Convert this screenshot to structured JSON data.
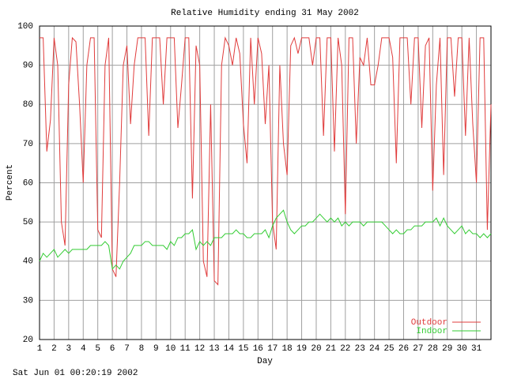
{
  "chart_data": {
    "type": "line",
    "title": "Relative Humidity ending 31 May 2002",
    "x_label": "Day",
    "y_label": "Percent",
    "footer": "Sat Jun 01 00:20:19 2002",
    "xlim": [
      1,
      32
    ],
    "ylim": [
      20,
      100
    ],
    "xticks": [
      1,
      2,
      3,
      4,
      5,
      6,
      7,
      8,
      9,
      10,
      11,
      12,
      13,
      14,
      15,
      16,
      17,
      18,
      19,
      20,
      21,
      22,
      23,
      24,
      25,
      26,
      27,
      28,
      29,
      30,
      31
    ],
    "yticks": [
      20,
      30,
      40,
      50,
      60,
      70,
      80,
      90,
      100
    ],
    "grid": true,
    "legend_position": "bottom-right",
    "x": [
      1,
      1.25,
      1.5,
      1.75,
      2,
      2.25,
      2.5,
      2.75,
      3,
      3.25,
      3.5,
      3.75,
      4,
      4.25,
      4.5,
      4.75,
      5,
      5.25,
      5.5,
      5.75,
      6,
      6.25,
      6.5,
      6.75,
      7,
      7.25,
      7.5,
      7.75,
      8,
      8.25,
      8.5,
      8.75,
      9,
      9.25,
      9.5,
      9.75,
      10,
      10.25,
      10.5,
      10.75,
      11,
      11.25,
      11.5,
      11.75,
      12,
      12.25,
      12.5,
      12.75,
      13,
      13.25,
      13.5,
      13.75,
      14,
      14.25,
      14.5,
      14.75,
      15,
      15.25,
      15.5,
      15.75,
      16,
      16.25,
      16.5,
      16.75,
      17,
      17.25,
      17.5,
      17.75,
      18,
      18.25,
      18.5,
      18.75,
      19,
      19.25,
      19.5,
      19.75,
      20,
      20.25,
      20.5,
      20.75,
      21,
      21.25,
      21.5,
      21.75,
      22,
      22.25,
      22.5,
      22.75,
      23,
      23.25,
      23.5,
      23.75,
      24,
      24.25,
      24.5,
      24.75,
      25,
      25.25,
      25.5,
      25.75,
      26,
      26.25,
      26.5,
      26.75,
      27,
      27.25,
      27.5,
      27.75,
      28,
      28.25,
      28.5,
      28.75,
      29,
      29.25,
      29.5,
      29.75,
      30,
      30.25,
      30.5,
      30.75,
      31,
      31.25,
      31.5,
      31.75,
      32
    ],
    "series": [
      {
        "name": "Outdoor",
        "color": "#e03c3c",
        "values": [
          97,
          97,
          68,
          76,
          97,
          90,
          50,
          44,
          85,
          97,
          96,
          80,
          60,
          90,
          97,
          97,
          48,
          46,
          90,
          97,
          38,
          36,
          60,
          90,
          95,
          75,
          90,
          97,
          97,
          97,
          72,
          97,
          97,
          97,
          80,
          97,
          97,
          97,
          74,
          85,
          97,
          97,
          56,
          95,
          90,
          40,
          36,
          80,
          35,
          34,
          90,
          97,
          95,
          90,
          97,
          93,
          75,
          65,
          97,
          80,
          97,
          93,
          75,
          90,
          50,
          43,
          90,
          70,
          62,
          95,
          97,
          93,
          97,
          97,
          97,
          90,
          97,
          97,
          72,
          97,
          97,
          68,
          97,
          90,
          52,
          97,
          97,
          70,
          92,
          90,
          97,
          85,
          85,
          90,
          97,
          97,
          97,
          92,
          65,
          97,
          97,
          97,
          80,
          97,
          97,
          74,
          95,
          97,
          58,
          85,
          97,
          62,
          97,
          97,
          82,
          97,
          97,
          72,
          97,
          75,
          60,
          97,
          97,
          48,
          80
        ]
      },
      {
        "name": "Indoor",
        "color": "#33cc33",
        "values": [
          40,
          42,
          41,
          42,
          43,
          41,
          42,
          43,
          42,
          43,
          43,
          43,
          43,
          43,
          44,
          44,
          44,
          44,
          45,
          44,
          38,
          39,
          38,
          40,
          41,
          42,
          44,
          44,
          44,
          45,
          45,
          44,
          44,
          44,
          44,
          43,
          45,
          44,
          46,
          46,
          47,
          47,
          48,
          43,
          45,
          44,
          45,
          44,
          46,
          46,
          46,
          47,
          47,
          47,
          48,
          47,
          47,
          46,
          46,
          47,
          47,
          47,
          48,
          46,
          49,
          51,
          52,
          53,
          50,
          48,
          47,
          48,
          49,
          49,
          50,
          50,
          51,
          52,
          51,
          50,
          51,
          50,
          51,
          49,
          50,
          49,
          50,
          50,
          50,
          49,
          50,
          50,
          50,
          50,
          50,
          49,
          48,
          47,
          48,
          47,
          47,
          48,
          48,
          49,
          49,
          49,
          50,
          50,
          50,
          51,
          49,
          51,
          49,
          48,
          47,
          48,
          49,
          47,
          48,
          47,
          47,
          46,
          47,
          46,
          47
        ]
      }
    ]
  }
}
